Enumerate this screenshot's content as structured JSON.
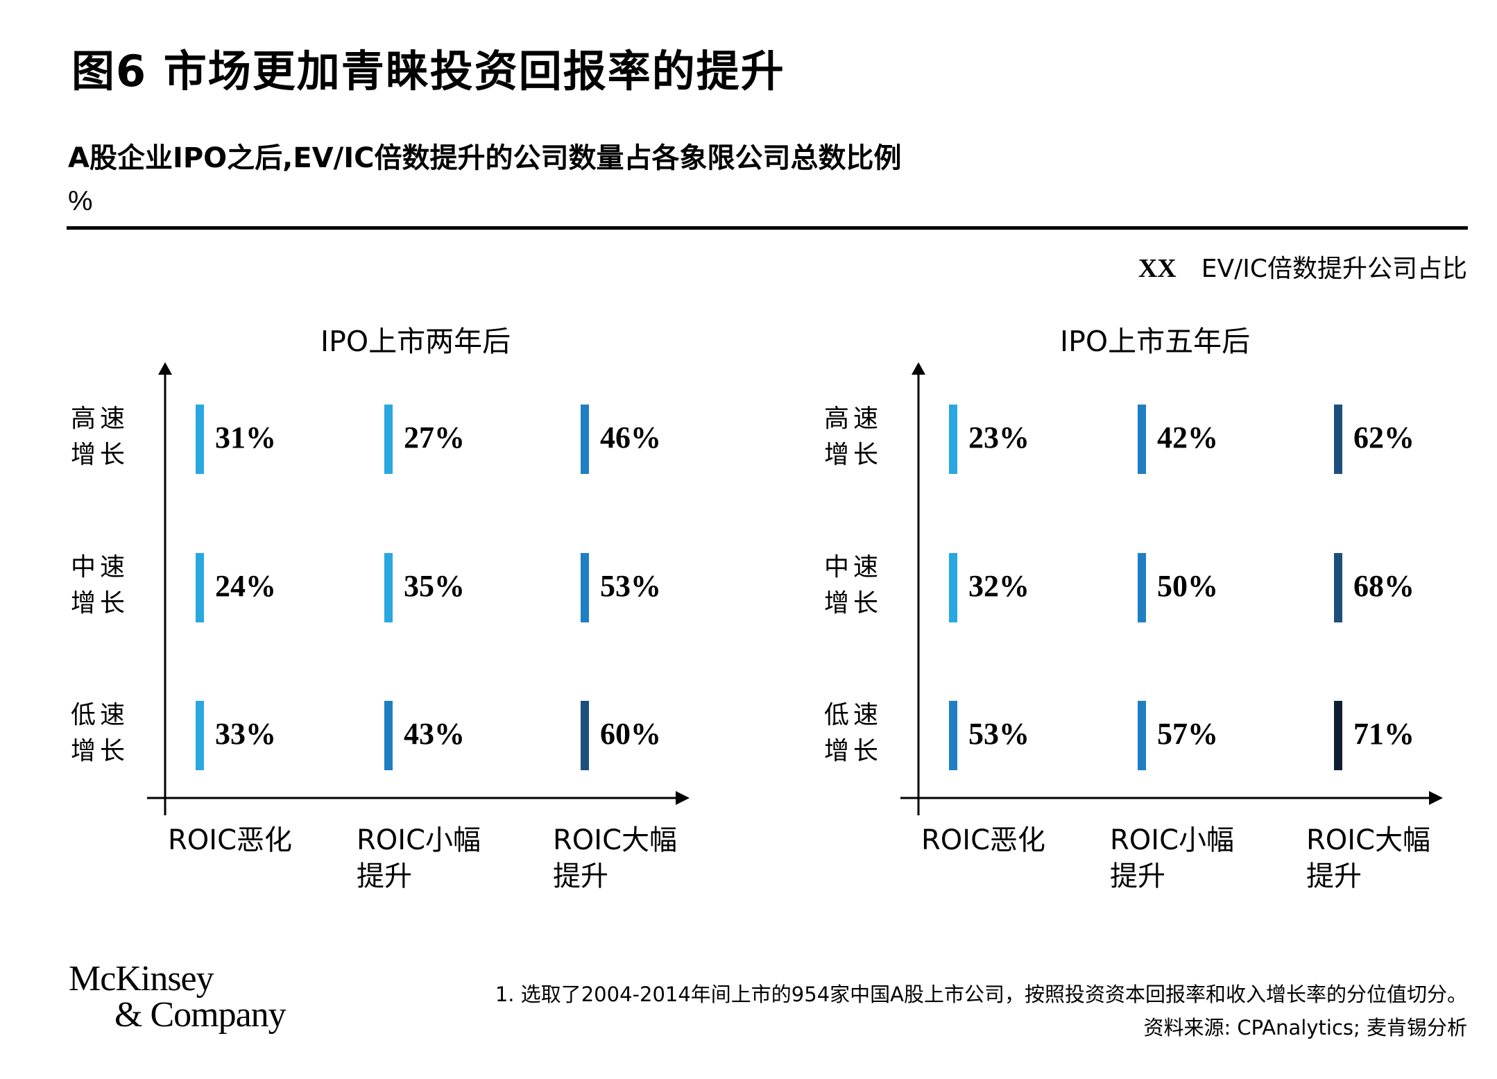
{
  "title": "图6 市场更加青睐投资回报率的提升",
  "subtitle": "A股企业IPO之后,EV/IC倍数提升的公司数量占各象限公司总数比例",
  "unit": "%",
  "legend": {
    "key": "XX",
    "text": "EV/IC倍数提升公司占比"
  },
  "colors": {
    "light": "#29a8e0",
    "medium": "#1f7fc2",
    "dark": "#1d4f7c",
    "darkest": "#0f1f33"
  },
  "chart_data": [
    {
      "type": "table",
      "title": "IPO上市两年后",
      "rows": [
        "高速增长",
        "中速增长",
        "低速增长"
      ],
      "row_lines": [
        [
          "高速",
          "增长"
        ],
        [
          "中速",
          "增长"
        ],
        [
          "低速",
          "增长"
        ]
      ],
      "columns": [
        "ROIC恶化",
        "ROIC小幅提升",
        "ROIC大幅提升"
      ],
      "column_lines": [
        [
          "ROIC恶化"
        ],
        [
          "ROIC小幅",
          "提升"
        ],
        [
          "ROIC大幅",
          "提升"
        ]
      ],
      "values": [
        [
          31,
          27,
          46
        ],
        [
          24,
          35,
          53
        ],
        [
          33,
          43,
          60
        ]
      ],
      "labels": [
        [
          "31%",
          "27%",
          "46%"
        ],
        [
          "24%",
          "35%",
          "53%"
        ],
        [
          "33%",
          "43%",
          "60%"
        ]
      ],
      "bar_colors": [
        [
          "light",
          "light",
          "medium"
        ],
        [
          "light",
          "light",
          "medium"
        ],
        [
          "light",
          "medium",
          "dark"
        ]
      ]
    },
    {
      "type": "table",
      "title": "IPO上市五年后",
      "rows": [
        "高速增长",
        "中速增长",
        "低速增长"
      ],
      "row_lines": [
        [
          "高速",
          "增长"
        ],
        [
          "中速",
          "增长"
        ],
        [
          "低速",
          "增长"
        ]
      ],
      "columns": [
        "ROIC恶化",
        "ROIC小幅提升",
        "ROIC大幅提升"
      ],
      "column_lines": [
        [
          "ROIC恶化"
        ],
        [
          "ROIC小幅",
          "提升"
        ],
        [
          "ROIC大幅",
          "提升"
        ]
      ],
      "values": [
        [
          23,
          42,
          62
        ],
        [
          32,
          50,
          68
        ],
        [
          53,
          57,
          71
        ]
      ],
      "labels": [
        [
          "23%",
          "42%",
          "62%"
        ],
        [
          "32%",
          "50%",
          "68%"
        ],
        [
          "53%",
          "57%",
          "71%"
        ]
      ],
      "bar_colors": [
        [
          "light",
          "medium",
          "dark"
        ],
        [
          "light",
          "medium",
          "dark"
        ],
        [
          "medium",
          "medium",
          "darkest"
        ]
      ]
    }
  ],
  "logo": {
    "line1": "McKinsey",
    "line2": "& Company"
  },
  "footnote": "1. 选取了2004-2014年间上市的954家中国A股上市公司，按照投资资本回报率和收入增长率的分位值切分。",
  "source": "资料来源: CPAnalytics; 麦肯锡分析"
}
